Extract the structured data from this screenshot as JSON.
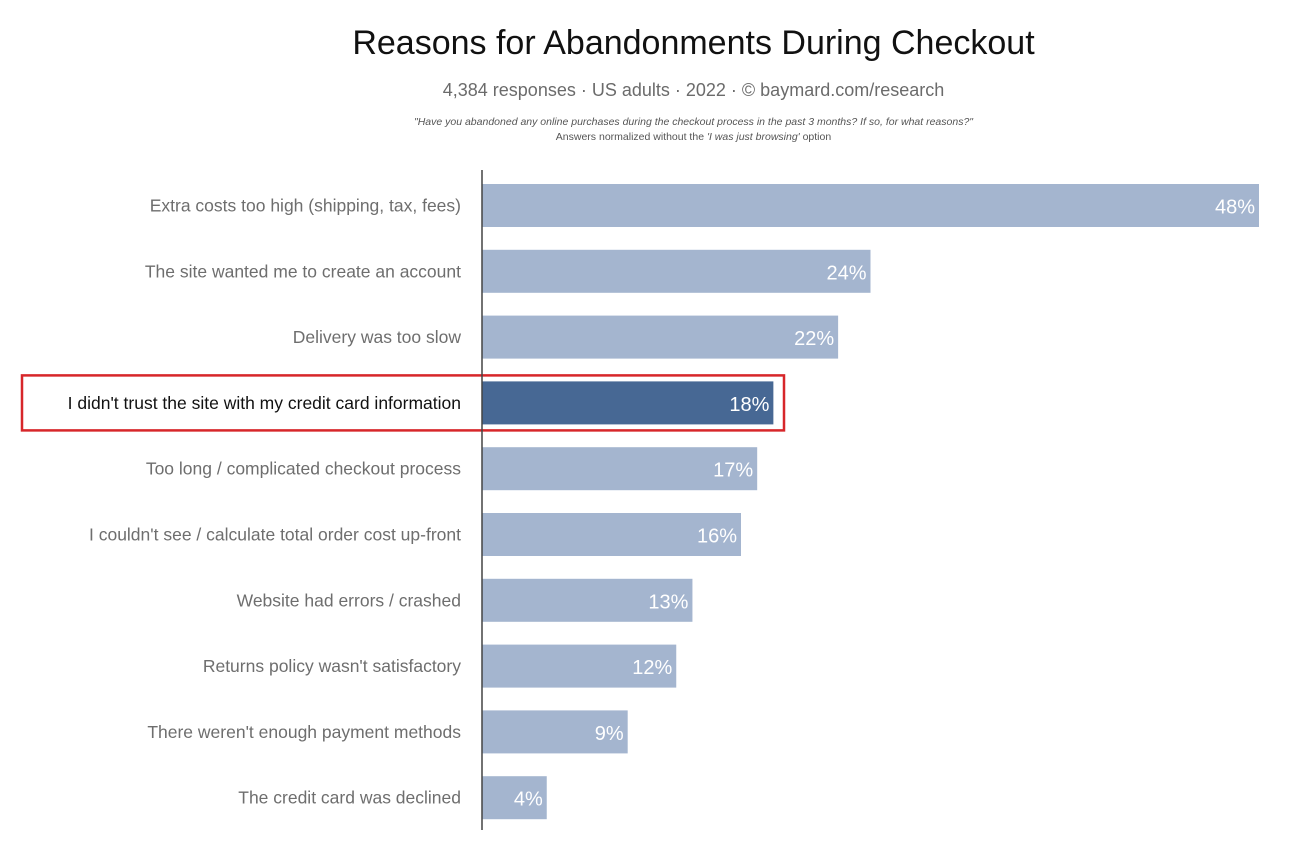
{
  "chart_data": {
    "type": "bar",
    "orientation": "horizontal",
    "title": "Reasons for Abandonments During Checkout",
    "subtitle": "4,384 responses  ·  US adults  ·  2022  ·  ©  baymard.com/research",
    "question": "\"Have you abandoned any online purchases during the checkout process in the past 3 months? If so, for what reasons?\"",
    "note_prefix": "Answers normalized without the ",
    "note_emphasis": "'I was just browsing'",
    "note_suffix": " option",
    "categories": [
      "Extra costs too high (shipping, tax, fees)",
      "The site wanted me to create an account",
      "Delivery was too slow",
      "I didn't trust the site with my credit card information",
      "Too long / complicated checkout process",
      "I couldn't see / calculate total order cost up-front",
      "Website had errors / crashed",
      "Returns policy wasn't satisfactory",
      "There weren't enough payment methods",
      "The credit card was declined"
    ],
    "values": [
      48,
      24,
      22,
      18,
      17,
      16,
      13,
      12,
      9,
      4
    ],
    "value_labels": [
      "48%",
      "24%",
      "22%",
      "18%",
      "17%",
      "16%",
      "13%",
      "12%",
      "9%",
      "4%"
    ],
    "highlighted_index": 3,
    "xlim": [
      0,
      48
    ],
    "grid": false,
    "legend": "none",
    "colors": {
      "bar": "#a4b5cf",
      "bar_highlight": "#476894",
      "highlight_box": "#d7262a",
      "label": "#6e6e6e",
      "label_highlight": "#111111",
      "value_text": "#ffffff",
      "axis": "#444444"
    }
  }
}
